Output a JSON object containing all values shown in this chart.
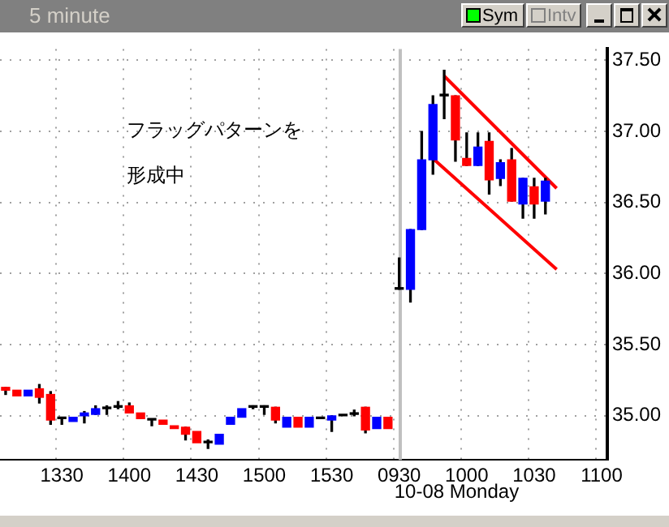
{
  "chart_data": {
    "type": "candlestick",
    "title": "5 minute",
    "categories": [
      null,
      null,
      null,
      null,
      null,
      "1330",
      null,
      null,
      null,
      null,
      null,
      "1400",
      null,
      null,
      null,
      null,
      null,
      "1430",
      null,
      null,
      null,
      null,
      null,
      "1500",
      null,
      null,
      null,
      null,
      null,
      "1530",
      null,
      null,
      null,
      null,
      null,
      "0930",
      null,
      null,
      null,
      null,
      null,
      "1000",
      null,
      null,
      null,
      null,
      null,
      "1030",
      null,
      null,
      null,
      null,
      null,
      "1100"
    ],
    "ohlc": [
      [
        35.2,
        35.2,
        35.15,
        35.18
      ],
      [
        35.18,
        35.18,
        35.14,
        35.14
      ],
      [
        35.14,
        35.18,
        35.14,
        35.18
      ],
      [
        35.19,
        35.22,
        35.09,
        35.13
      ],
      [
        35.15,
        35.17,
        34.94,
        34.97
      ],
      [
        34.98,
        34.99,
        34.94,
        34.98
      ],
      [
        34.96,
        34.99,
        34.96,
        34.99
      ],
      [
        35.0,
        35.03,
        34.95,
        35.02
      ],
      [
        35.01,
        35.07,
        35.01,
        35.05
      ],
      [
        35.05,
        35.07,
        35.01,
        35.05
      ],
      [
        35.06,
        35.1,
        35.05,
        35.06
      ],
      [
        35.07,
        35.09,
        35.02,
        35.02
      ],
      [
        35.02,
        35.02,
        34.98,
        34.98
      ],
      [
        34.97,
        34.97,
        34.93,
        34.97
      ],
      [
        34.97,
        34.97,
        34.94,
        34.94
      ],
      [
        34.93,
        34.93,
        34.91,
        34.91
      ],
      [
        34.92,
        34.92,
        34.83,
        34.87
      ],
      [
        34.89,
        34.89,
        34.81,
        34.81
      ],
      [
        34.81,
        34.83,
        34.77,
        34.81
      ],
      [
        34.8,
        34.87,
        34.8,
        34.87
      ],
      [
        34.94,
        34.99,
        34.94,
        34.99
      ],
      [
        34.99,
        35.05,
        34.99,
        35.05
      ],
      [
        35.06,
        35.07,
        35.05,
        35.06
      ],
      [
        35.06,
        35.07,
        35.01,
        35.06
      ],
      [
        35.06,
        35.06,
        34.95,
        34.97
      ],
      [
        34.92,
        34.99,
        34.92,
        34.99
      ],
      [
        34.99,
        34.99,
        34.92,
        34.92
      ],
      [
        34.92,
        34.99,
        34.92,
        34.99
      ],
      [
        34.98,
        34.98,
        34.98,
        34.98
      ],
      [
        34.97,
        35.0,
        34.89,
        35.0
      ],
      [
        35.0,
        35.0,
        35.0,
        35.0
      ],
      [
        35.01,
        35.04,
        35.0,
        35.01
      ],
      [
        35.06,
        35.06,
        34.88,
        34.9
      ],
      [
        34.91,
        34.99,
        34.91,
        34.99
      ],
      [
        34.99,
        34.99,
        34.91,
        34.91
      ],
      [
        35.89,
        36.11,
        35.89,
        35.89
      ],
      [
        35.89,
        36.31,
        35.8,
        36.31
      ],
      [
        36.31,
        37.0,
        36.31,
        36.8
      ],
      [
        36.8,
        37.25,
        36.7,
        37.19
      ],
      [
        37.25,
        37.43,
        37.09,
        37.25
      ],
      [
        37.25,
        37.25,
        36.79,
        36.94
      ],
      [
        36.81,
        36.99,
        36.76,
        36.76
      ],
      [
        36.76,
        36.99,
        36.76,
        36.89
      ],
      [
        36.93,
        36.99,
        36.56,
        36.66
      ],
      [
        36.67,
        36.8,
        36.62,
        36.78
      ],
      [
        36.8,
        36.88,
        36.51,
        36.51
      ],
      [
        36.49,
        36.67,
        36.39,
        36.67
      ],
      [
        36.61,
        36.67,
        36.39,
        36.49
      ],
      [
        36.51,
        36.67,
        36.42,
        36.65
      ],
      null,
      null,
      null,
      null,
      null
    ],
    "colors": [
      "#ff0000",
      "#ff0000",
      "#0000ff",
      "#ff0000",
      "#ff0000",
      "#000000",
      "#0000ff",
      "#0000ff",
      "#0000ff",
      "#000000",
      "#000000",
      "#ff0000",
      "#ff0000",
      "#000000",
      "#ff0000",
      "#ff0000",
      "#ff0000",
      "#ff0000",
      "#000000",
      "#0000ff",
      "#0000ff",
      "#0000ff",
      "#000000",
      "#000000",
      "#ff0000",
      "#0000ff",
      "#ff0000",
      "#0000ff",
      "#000000",
      "#0000ff",
      "#000000",
      "#000000",
      "#ff0000",
      "#0000ff",
      "#ff0000",
      "#000000",
      "#0000ff",
      "#0000ff",
      "#0000ff",
      "#000000",
      "#ff0000",
      "#ff0000",
      "#0000ff",
      "#ff0000",
      "#0000ff",
      "#ff0000",
      "#0000ff",
      "#ff0000",
      "#0000ff",
      null,
      null,
      null,
      null,
      null
    ],
    "series": [
      {
        "type": "line",
        "color": "#ff0000",
        "values": [
          null,
          null,
          null,
          null,
          null,
          null,
          null,
          null,
          null,
          null,
          null,
          null,
          null,
          null,
          null,
          null,
          null,
          null,
          null,
          null,
          null,
          null,
          null,
          null,
          null,
          null,
          null,
          null,
          null,
          null,
          null,
          null,
          null,
          null,
          null,
          null,
          null,
          null,
          null,
          37.39,
          null,
          null,
          null,
          null,
          null,
          null,
          null,
          null,
          null,
          36.6,
          null,
          null,
          null,
          null
        ]
      },
      {
        "type": "line",
        "color": "#ff0000",
        "values": [
          null,
          null,
          null,
          null,
          null,
          null,
          null,
          null,
          null,
          null,
          null,
          null,
          null,
          null,
          null,
          null,
          null,
          null,
          null,
          null,
          null,
          null,
          null,
          null,
          null,
          null,
          null,
          null,
          null,
          null,
          null,
          null,
          null,
          null,
          null,
          null,
          null,
          null,
          36.81,
          null,
          null,
          null,
          null,
          null,
          null,
          null,
          null,
          null,
          null,
          36.03,
          null,
          null,
          null,
          null
        ]
      }
    ],
    "ylim": [
      34.69,
      37.58
    ],
    "yticks": [
      {
        "value": 35,
        "label": "35.00"
      },
      {
        "value": 35.5,
        "label": "35.50"
      },
      {
        "value": 36,
        "label": "36.00"
      },
      {
        "value": 36.5,
        "label": "36.50"
      },
      {
        "value": 37,
        "label": "37.00"
      },
      {
        "value": 37.5,
        "label": "37.50"
      }
    ],
    "ref_lines": [
      {
        "axis": "x",
        "value": "0930",
        "color": "#c0c0c0"
      }
    ],
    "annotations": [
      "フラッグパターンを形成中",
      "Sym",
      "Intv",
      "10-08 Monday"
    ],
    "grid": true,
    "legend": false
  }
}
